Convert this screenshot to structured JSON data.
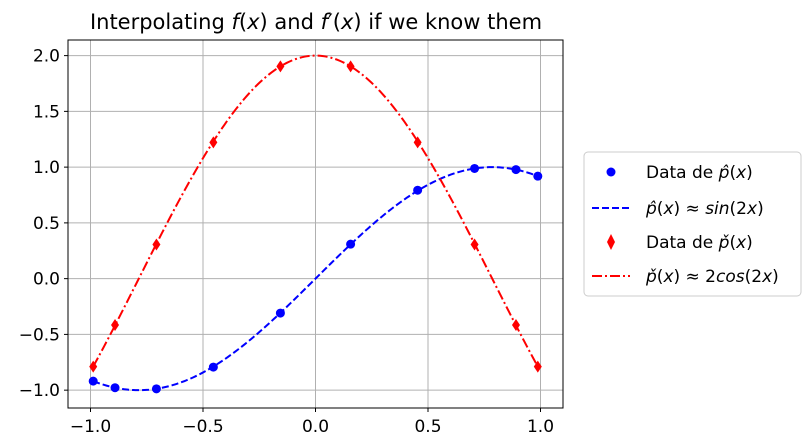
{
  "chart_data": {
    "type": "line",
    "title": "Interpolating f(x) and f′(x) if we know them",
    "xlim": [
      -1.1,
      1.1
    ],
    "ylim": [
      -1.16,
      2.14
    ],
    "grid": true,
    "legend_position": "outside-right",
    "x_ticks": [
      "−1.0",
      "−0.5",
      "0.0",
      "0.5",
      "1.0"
    ],
    "x_tick_values": [
      -1.0,
      -0.5,
      0.0,
      0.5,
      1.0
    ],
    "y_ticks": [
      "−1.0",
      "−0.5",
      "0.0",
      "0.5",
      "1.0",
      "1.5",
      "2.0"
    ],
    "y_tick_values": [
      -1.0,
      -0.5,
      0.0,
      0.5,
      1.0,
      1.5,
      2.0
    ],
    "series": [
      {
        "name": "Data de p̂(x)",
        "kind": "scatter",
        "marker": "circle",
        "color": "#0000ff",
        "x": [
          -0.988,
          -0.891,
          -0.707,
          -0.454,
          -0.156,
          0.156,
          0.454,
          0.707,
          0.891,
          0.988
        ],
        "y": [
          -0.919,
          -0.978,
          -0.988,
          -0.793,
          -0.309,
          0.309,
          0.793,
          0.988,
          0.978,
          0.919
        ]
      },
      {
        "name": "p̂(x) ≈ sin(2x)",
        "kind": "line",
        "style": "dashed",
        "color": "#0000ff",
        "function": "sin(2x)",
        "x_range": [
          -0.988,
          0.988
        ]
      },
      {
        "name": "Data de p̌(x)",
        "kind": "scatter",
        "marker": "diamond",
        "color": "#ff0000",
        "x": [
          -0.988,
          -0.891,
          -0.707,
          -0.454,
          -0.156,
          0.156,
          0.454,
          0.707,
          0.891,
          0.988
        ],
        "y": [
          -0.789,
          -0.416,
          0.306,
          1.222,
          1.903,
          1.903,
          1.222,
          0.306,
          -0.416,
          -0.789
        ]
      },
      {
        "name": "p̌(x) ≈ 2cos(2x)",
        "kind": "line",
        "style": "dashdot",
        "color": "#ff0000",
        "function": "2cos(2x)",
        "x_range": [
          -0.988,
          0.988
        ]
      }
    ]
  }
}
